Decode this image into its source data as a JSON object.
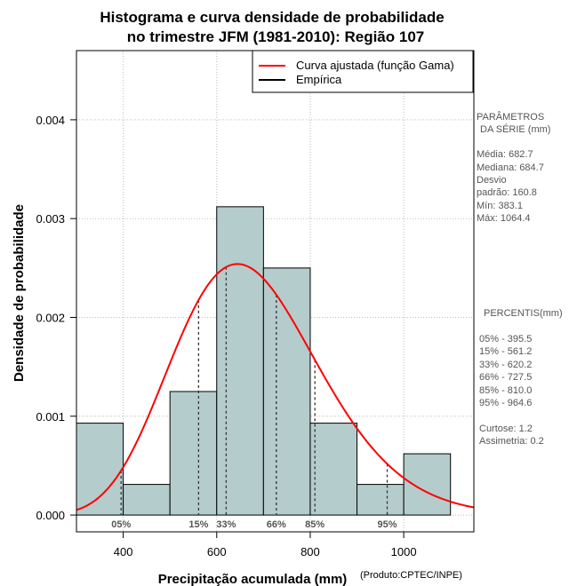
{
  "chart_data": {
    "type": "bar",
    "title_line1": "Histograma e curva densidade de probabilidade",
    "title_line2": "no trimestre JFM (1981-2010): Região 107",
    "xlabel": "Precipitação acumulada (mm)",
    "ylabel": "Densidade de probabilidade",
    "credit": "(Produto:CPTEC/INPE)",
    "xlim": [
      300,
      1150
    ],
    "ylim": [
      -0.00017,
      0.0047
    ],
    "x_ticks": [
      {
        "value": 400,
        "label": "400"
      },
      {
        "value": 600,
        "label": "600"
      },
      {
        "value": 800,
        "label": "800"
      },
      {
        "value": 1000,
        "label": "1000"
      }
    ],
    "y_ticks": [
      {
        "value": 0.0,
        "label": "0.000"
      },
      {
        "value": 0.001,
        "label": "0.001"
      },
      {
        "value": 0.002,
        "label": "0.002"
      },
      {
        "value": 0.003,
        "label": "0.003"
      },
      {
        "value": 0.004,
        "label": "0.004"
      }
    ],
    "bins": [
      {
        "start": 300,
        "end": 400,
        "density": 0.00093
      },
      {
        "start": 400,
        "end": 500,
        "density": 0.00031
      },
      {
        "start": 500,
        "end": 600,
        "density": 0.00125
      },
      {
        "start": 600,
        "end": 700,
        "density": 0.00312
      },
      {
        "start": 700,
        "end": 800,
        "density": 0.0025
      },
      {
        "start": 800,
        "end": 900,
        "density": 0.00093
      },
      {
        "start": 900,
        "end": 1000,
        "density": 0.00031
      },
      {
        "start": 1000,
        "end": 1100,
        "density": 0.00062
      }
    ],
    "gamma_fit": {
      "shape": 18.0,
      "scale": 37.9
    },
    "percentiles": [
      {
        "label": "05%",
        "value": 395.5
      },
      {
        "label": "15%",
        "value": 561.2
      },
      {
        "label": "33%",
        "value": 620.2
      },
      {
        "label": "66%",
        "value": 727.5
      },
      {
        "label": "85%",
        "value": 810.0
      },
      {
        "label": "95%",
        "value": 964.6
      }
    ],
    "legend": {
      "position": "top-right",
      "entries": [
        {
          "label": "Curva ajustada (função Gama)",
          "color": "#ff0000"
        },
        {
          "label": "Empírica",
          "color": "#000000"
        }
      ]
    },
    "colors": {
      "bar_fill": "#b4cccb",
      "curve": "#ff0000",
      "grid": "#bbbbbb",
      "side_text": "#555555"
    },
    "stats_panel": {
      "heading1": "PARÂMETROS",
      "heading2": "DA SÉRIE (mm)",
      "lines": [
        "Média:  682.7",
        "Mediana:  684.7",
        "Desvio",
        "padrão:  160.8",
        "Mín:  383.1",
        "Máx:  1064.4"
      ]
    },
    "percentis_panel": {
      "heading": "PERCENTIS(mm)",
      "lines": [
        "05% -   395.5",
        "15% -   561.2",
        "33% -   620.2",
        "66% -   727.5",
        "85% -   810.0",
        "95% -   964.6"
      ],
      "extra": [
        "Curtose:  1.2",
        "Assimetria:  0.2"
      ]
    }
  }
}
